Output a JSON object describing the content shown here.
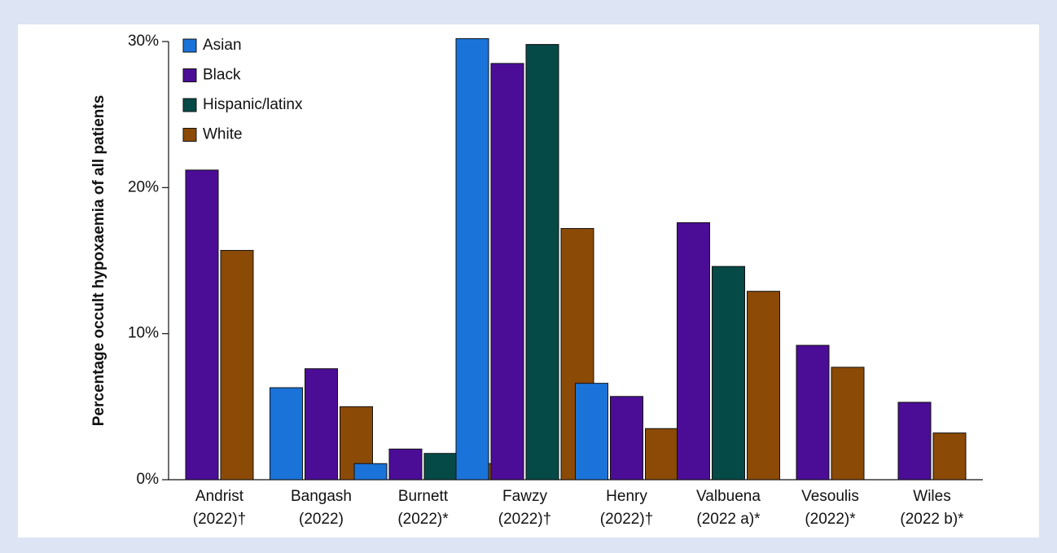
{
  "chart_data": {
    "type": "bar",
    "y_label": "Percentage occult hypoxaemia of all patients",
    "categories": [
      [
        "Andrist",
        "(2022)†"
      ],
      [
        "Bangash",
        "(2022)"
      ],
      [
        "Burnett",
        "(2022)*"
      ],
      [
        "Fawzy",
        "(2022)†"
      ],
      [
        "Henry",
        "(2022)†"
      ],
      [
        "Valbuena",
        "(2022 a)*"
      ],
      [
        "Vesoulis",
        "(2022)*"
      ],
      [
        "Wiles",
        "(2022 b)*"
      ]
    ],
    "series": [
      {
        "name": "Asian",
        "color": "#1a73d9",
        "values": [
          null,
          6.3,
          1.1,
          30.2,
          6.6,
          null,
          null,
          null
        ]
      },
      {
        "name": "Black",
        "color": "#4b0d96",
        "values": [
          21.2,
          7.6,
          2.1,
          28.5,
          5.7,
          17.6,
          9.2,
          5.3
        ]
      },
      {
        "name": "Hispanic/latinx",
        "color": "#054a47",
        "values": [
          null,
          null,
          1.8,
          29.8,
          null,
          14.6,
          null,
          null
        ]
      },
      {
        "name": "White",
        "color": "#8b4a06",
        "values": [
          15.7,
          5.0,
          1.1,
          17.2,
          3.5,
          12.9,
          7.7,
          3.2
        ]
      }
    ],
    "ylim": [
      0,
      30
    ],
    "yticks": [
      {
        "value": 0,
        "label": "0%"
      },
      {
        "value": 10,
        "label": "10%"
      },
      {
        "value": 20,
        "label": "20%"
      },
      {
        "value": 30,
        "label": "30%"
      }
    ],
    "legend": "upper left"
  }
}
